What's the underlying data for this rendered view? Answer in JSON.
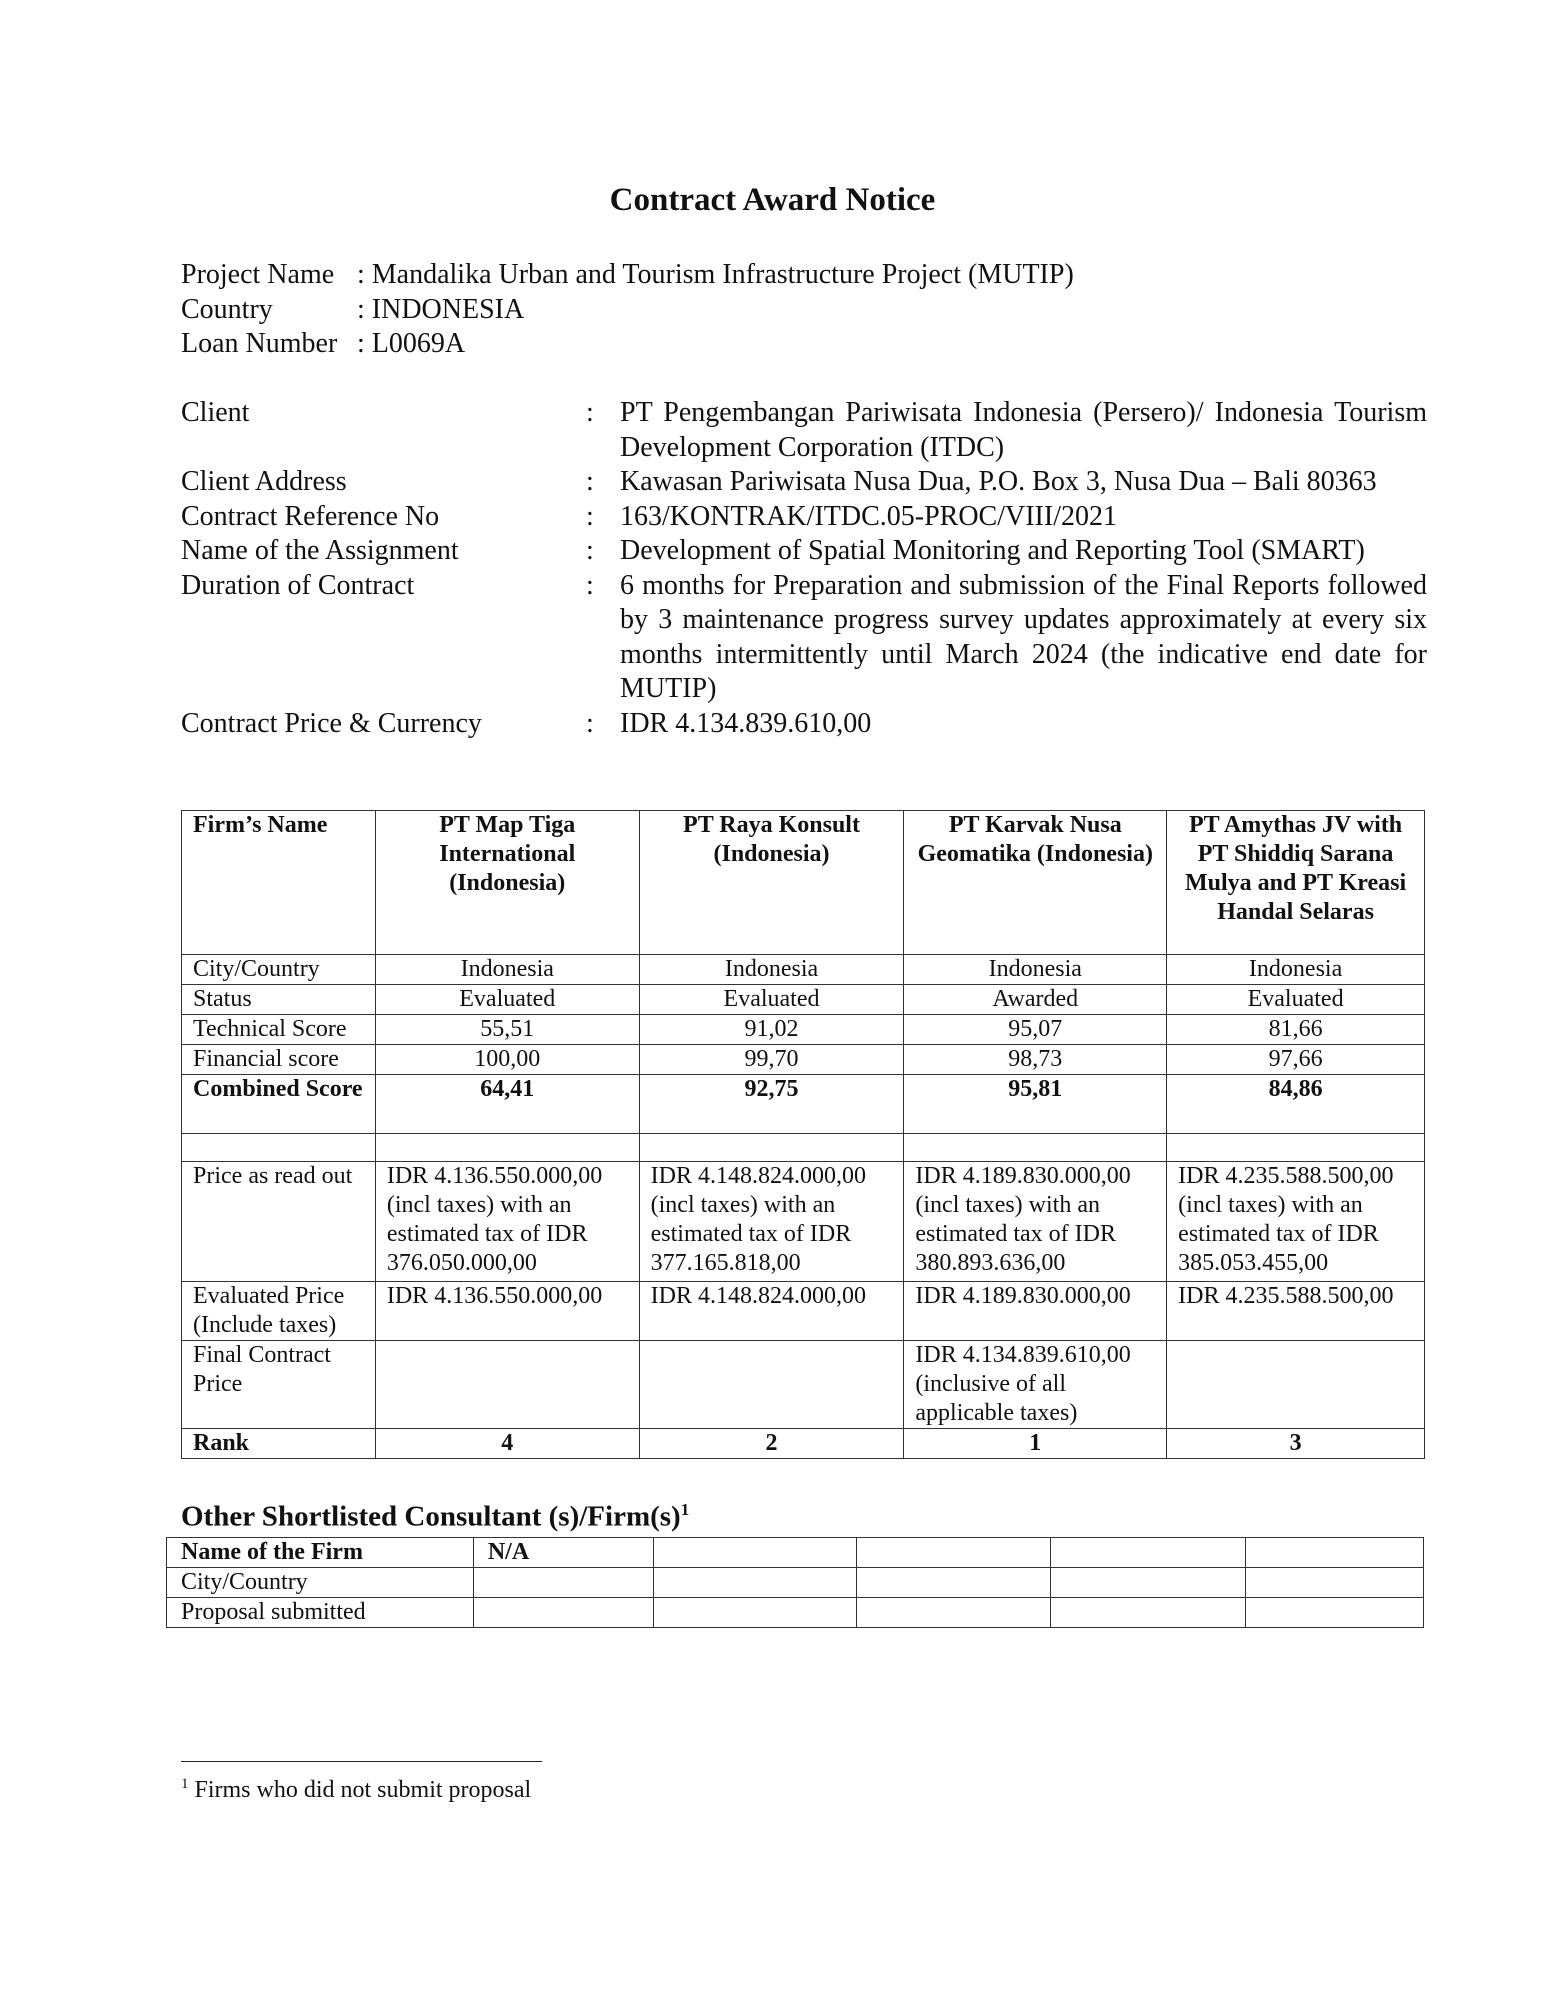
{
  "title": "Contract Award Notice",
  "project": [
    {
      "label": "Project Name",
      "value": ": Mandalika Urban and Tourism Infrastructure Project (MUTIP)"
    },
    {
      "label": "Country",
      "value": ": INDONESIA"
    },
    {
      "label": "Loan Number",
      "value": ":  L0069A"
    }
  ],
  "info": [
    {
      "label": "Client",
      "colon": ":",
      "value": "PT Pengembangan Pariwisata Indonesia (Persero)/ Indonesia Tourism Development Corporation (ITDC)"
    },
    {
      "label": "Client Address",
      "colon": ":",
      "value": "Kawasan Pariwisata Nusa Dua, P.O. Box 3, Nusa Dua – Bali 80363"
    },
    {
      "label": "Contract Reference No",
      "colon": ":",
      "value": "163/KONTRAK/ITDC.05-PROC/VIII/2021"
    },
    {
      "label": "Name of the Assignment",
      "colon": ":",
      "value": "Development of Spatial Monitoring and Reporting Tool (SMART)"
    },
    {
      "label": "Duration of Contract",
      "colon": ":",
      "value": "6 months for Preparation and submission of the Final Reports followed by 3 maintenance progress survey updates approximately at every six months intermittently until March 2024 (the indicative end date for MUTIP)"
    },
    {
      "label": "Contract Price & Currency",
      "colon": ":",
      "value": "IDR 4.134.839.610,00"
    }
  ],
  "evaluation": {
    "header_label": "Firm’s Name",
    "firms": [
      "PT Map Tiga International (Indonesia)",
      "PT Raya Konsult (Indonesia)",
      "PT Karvak Nusa Geomatika (Indonesia)",
      "PT Amythas JV with PT Shiddiq Sarana Mulya and PT Kreasi Handal Selaras"
    ],
    "rows": {
      "city": {
        "label": "City/Country",
        "values": [
          "Indonesia",
          "Indonesia",
          "Indonesia",
          "Indonesia"
        ]
      },
      "status": {
        "label": "Status",
        "values": [
          "Evaluated",
          "Evaluated",
          "Awarded",
          "Evaluated"
        ]
      },
      "technical": {
        "label": "Technical Score",
        "values": [
          "55,51",
          "91,02",
          "95,07",
          "81,66"
        ]
      },
      "financial": {
        "label": "Financial score",
        "values": [
          "100,00",
          "99,70",
          "98,73",
          "97,66"
        ]
      },
      "combined": {
        "label": "Combined Score",
        "values": [
          "64,41",
          "92,75",
          "95,81",
          "84,86"
        ]
      },
      "price_read": {
        "label": "Price as read out",
        "values": [
          "IDR 4.136.550.000,00 (incl taxes) with an estimated tax of   IDR 376.050.000,00",
          "IDR 4.148.824.000,00 (incl taxes) with an estimated tax of  IDR 377.165.818,00",
          "IDR 4.189.830.000,00 (incl taxes) with an estimated tax of  IDR 380.893.636,00",
          "IDR 4.235.588.500,00 (incl taxes) with an estimated tax of IDR 385.053.455,00"
        ]
      },
      "evaluated": {
        "label": "Evaluated Price (Include taxes)",
        "values": [
          "IDR 4.136.550.000,00",
          "IDR 4.148.824.000,00",
          "IDR 4.189.830.000,00",
          "IDR 4.235.588.500,00"
        ]
      },
      "final": {
        "label": "Final Contract Price",
        "values": [
          "",
          "",
          "IDR 4.134.839.610,00 (inclusive of all applicable taxes)",
          ""
        ]
      },
      "rank": {
        "label": "Rank",
        "values": [
          "4",
          "2",
          "1",
          "3"
        ]
      }
    }
  },
  "other": {
    "title": "Other Shortlisted Consultant (s)/Firm(s)",
    "footnote_ref": "1",
    "rows": [
      {
        "label": "Name of the Firm",
        "value": "N/A"
      },
      {
        "label": "City/Country",
        "value": ""
      },
      {
        "label": "Proposal submitted",
        "value": ""
      }
    ]
  },
  "footnote": {
    "number": "1",
    "text": "Firms who did not submit proposal"
  }
}
